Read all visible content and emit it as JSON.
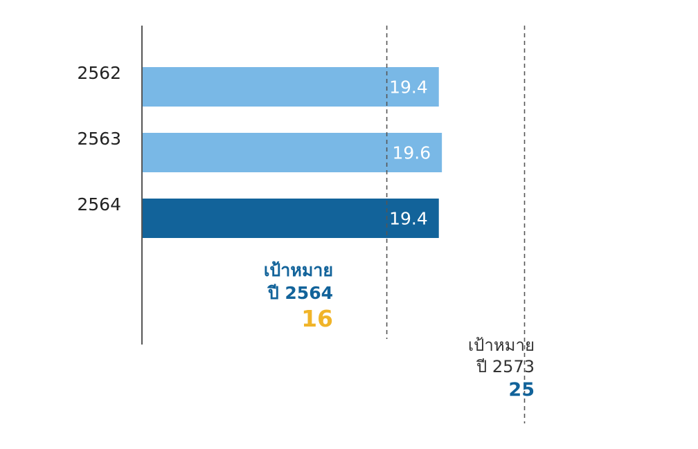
{
  "chart_data": {
    "type": "bar",
    "orientation": "horizontal",
    "categories": [
      "2562",
      "2563",
      "2564"
    ],
    "values": [
      19.4,
      19.6,
      19.4
    ],
    "value_labels": [
      "19.4",
      "19.6",
      "19.4"
    ],
    "bar_colors": [
      "#79b8e6",
      "#79b8e6",
      "#12639a"
    ],
    "xlim": [
      0,
      26
    ],
    "reference_lines": [
      {
        "value": 16,
        "line1": "เป้าหมาย",
        "line2": "ปี 2564",
        "value_label": "16",
        "label_color": "#12639a",
        "value_color": "#f0b429"
      },
      {
        "value": 25,
        "line1": "เป้าหมาย",
        "line2": "ปี 2573",
        "value_label": "25",
        "label_color": "#333333",
        "value_color": "#12639a"
      }
    ],
    "grid": false
  }
}
